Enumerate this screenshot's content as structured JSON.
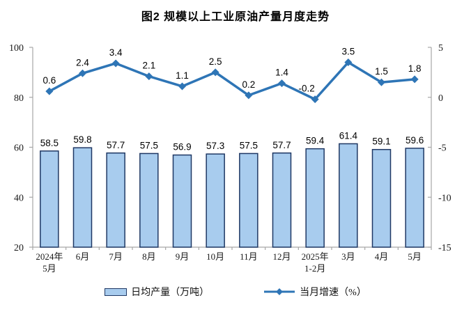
{
  "title": "图2 规模以上工业原油产量月度走势",
  "colors": {
    "bar_fill": "#A8CCEE",
    "bar_border": "#1F3864",
    "line": "#2E75B6",
    "axis": "#A6A6A6"
  },
  "chart_data": {
    "type": "bar",
    "subtype": "bar+line combo, dual axis",
    "title": "图2 规模以上工业原油产量月度走势",
    "categories": [
      [
        "2024年",
        "5月"
      ],
      [
        "6月"
      ],
      [
        "7月"
      ],
      [
        "8月"
      ],
      [
        "9月"
      ],
      [
        "10月"
      ],
      [
        "11月"
      ],
      [
        "12月"
      ],
      [
        "2025年",
        "1-2月"
      ],
      [
        "3月"
      ],
      [
        "4月"
      ],
      [
        "5月"
      ]
    ],
    "series": [
      {
        "name": "日均产量（万吨）",
        "type": "bar",
        "axis": "left",
        "values": [
          58.5,
          59.8,
          57.7,
          57.5,
          56.9,
          57.3,
          57.5,
          57.7,
          59.4,
          61.4,
          59.1,
          59.6
        ]
      },
      {
        "name": "当月增速（%）",
        "type": "line",
        "axis": "right",
        "values": [
          0.6,
          2.4,
          3.4,
          2.1,
          1.1,
          2.5,
          0.2,
          1.4,
          -0.2,
          3.5,
          1.5,
          1.8
        ]
      }
    ],
    "left_axis": {
      "min": 20,
      "max": 100,
      "ticks": [
        20,
        40,
        60,
        80,
        100
      ]
    },
    "right_axis": {
      "min": -15,
      "max": 5,
      "ticks": [
        -15,
        -10,
        -5,
        0,
        5
      ]
    },
    "grid": false,
    "legend_position": "bottom",
    "data_labels": true
  },
  "legend": {
    "bar_label": "日均产量（万吨）",
    "line_label": "当月增速（%）"
  }
}
